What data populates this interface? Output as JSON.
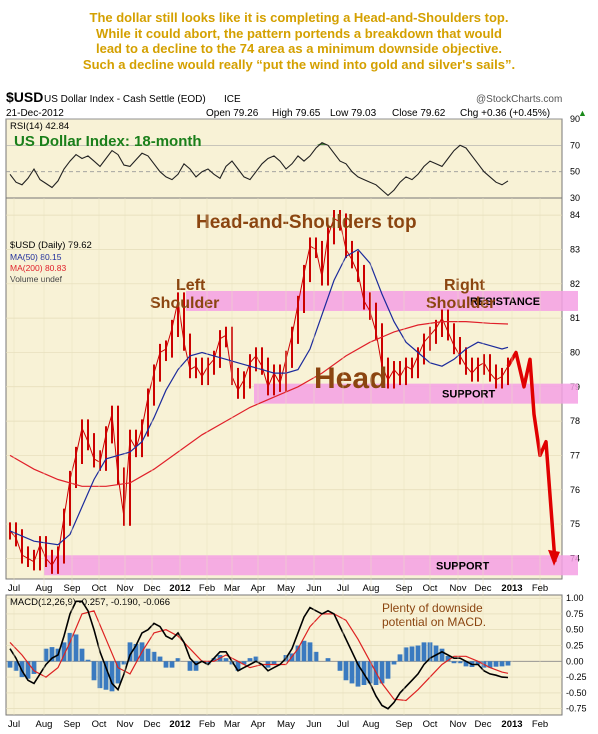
{
  "headline": [
    "The dollar still looks like it is completing a Head-and-Shoulders top.",
    "While it could abort, the pattern portends a breakdown that would",
    "lead to a decline to the 74 area as a minimum downside objective.",
    "Such a decline would really “put the wind into gold and silver's sails”."
  ],
  "header": {
    "symbol": "$USD",
    "name": "US Dollar Index - Cash Settle (EOD)",
    "exchange": "ICE",
    "date": "21-Dec-2012",
    "open": "Open 79.26",
    "high": "High 79.65",
    "low": "Low 79.03",
    "close": "Close 79.62",
    "chg": "Chg +0.36 (+0.45%)",
    "chg_arrow": "▲",
    "watermark": "@StockCharts.com"
  },
  "colors": {
    "background": "#f8f2d6",
    "price": "#cc0000",
    "ma50": "#1c2b9c",
    "ma200": "#e0202a",
    "zone": "#f4a0e4",
    "annotation": "#8b4510",
    "chart_title": "#1a7f1a",
    "arrow": "#e00000",
    "rsi_line": "#222222",
    "macd_line": "#000000",
    "signal_line": "#dd2222",
    "histogram": "#3a7ac0",
    "rsi_overbought": "#4a8a3a",
    "rsi_oversold": "#2a60b0"
  },
  "chart_data": [
    {
      "type": "line",
      "panel": "rsi",
      "label": "RSI(14) 42.84",
      "title": "US Dollar Index: 18-month",
      "ylim": [
        30,
        90
      ],
      "yticks": [
        30,
        50,
        70,
        90
      ],
      "series": [
        {
          "name": "RSI(14)",
          "x": [
            0,
            6,
            12,
            18,
            24,
            30,
            36,
            42,
            48,
            54,
            60,
            66,
            72,
            78,
            84,
            90,
            96,
            102,
            108,
            114,
            120,
            126,
            132,
            138,
            144,
            150,
            156,
            162,
            168,
            174,
            180,
            186,
            192,
            198,
            204,
            210,
            216,
            222,
            228,
            234,
            240,
            246,
            252,
            258,
            264,
            270,
            276,
            282,
            288,
            294,
            300,
            306,
            312,
            318,
            324,
            330,
            336,
            342,
            348,
            354,
            360,
            366,
            372,
            378,
            384,
            390,
            396,
            402,
            408,
            414,
            420,
            426,
            432,
            438,
            444,
            450,
            456,
            462,
            468,
            474,
            480,
            486,
            492,
            498
          ],
          "values": [
            48,
            42,
            40,
            45,
            52,
            44,
            41,
            38,
            43,
            52,
            58,
            63,
            60,
            62,
            58,
            54,
            60,
            66,
            63,
            55,
            54,
            59,
            64,
            62,
            56,
            50,
            46,
            44,
            48,
            56,
            52,
            46,
            50,
            52,
            48,
            45,
            54,
            58,
            52,
            46,
            44,
            50,
            56,
            60,
            62,
            58,
            52,
            56,
            62,
            58,
            62,
            68,
            72,
            70,
            64,
            58,
            56,
            50,
            46,
            44,
            42,
            40,
            36,
            32,
            36,
            42,
            46,
            44,
            48,
            54,
            58,
            56,
            54,
            60,
            66,
            70,
            68,
            62,
            56,
            50,
            46,
            42,
            40,
            43
          ]
        }
      ]
    },
    {
      "type": "line",
      "panel": "price",
      "title": "Head-and-Shoulders top",
      "legend": [
        "$USD (Daily) 79.62",
        "MA(50) 80.15",
        "MA(200) 80.83",
        "Volume undef"
      ],
      "ylim": [
        73.4,
        84.5
      ],
      "yticks": [
        74,
        75,
        76,
        77,
        78,
        79,
        80,
        81,
        82,
        83,
        84
      ],
      "x_tick_labels": [
        "Jul",
        "Aug",
        "Sep",
        "Oct",
        "Nov",
        "Dec",
        "2012",
        "Feb",
        "Mar",
        "Apr",
        "May",
        "Jun",
        "Jul",
        "Aug",
        "Sep",
        "Oct",
        "Nov",
        "Dec",
        "2013",
        "Feb"
      ],
      "series": [
        {
          "name": "$USD (Daily)",
          "x": [
            0,
            6,
            12,
            18,
            24,
            30,
            36,
            42,
            48,
            54,
            60,
            66,
            72,
            78,
            84,
            90,
            96,
            102,
            108,
            114,
            120,
            126,
            132,
            138,
            144,
            150,
            156,
            162,
            168,
            174,
            180,
            186,
            192,
            198,
            204,
            210,
            216,
            222,
            228,
            234,
            240,
            246,
            252,
            258,
            264,
            270,
            276,
            282,
            288,
            294,
            300,
            306,
            312,
            318,
            324,
            330,
            336,
            342,
            348,
            354,
            360,
            366,
            372,
            378,
            384,
            390,
            396,
            402,
            408,
            414,
            420,
            426,
            432,
            438,
            444,
            450,
            456,
            462,
            468,
            474,
            480,
            486,
            492,
            498
          ],
          "values": [
            74.8,
            74.6,
            74.1,
            74.0,
            73.9,
            74.4,
            74.0,
            73.8,
            74.1,
            75.2,
            76.3,
            77.0,
            77.8,
            77.4,
            76.9,
            76.8,
            77.6,
            78.2,
            76.4,
            75.2,
            77.5,
            77.2,
            77.8,
            78.7,
            79.4,
            80.0,
            80.1,
            80.7,
            81.5,
            80.3,
            79.5,
            79.6,
            79.3,
            79.6,
            79.8,
            80.4,
            80.5,
            79.3,
            78.9,
            79.2,
            79.7,
            79.9,
            79.6,
            79.0,
            79.4,
            79.1,
            79.8,
            80.5,
            81.4,
            82.3,
            83.1,
            83.0,
            82.2,
            83.4,
            83.9,
            83.8,
            83.0,
            82.7,
            82.3,
            81.5,
            81.2,
            80.6,
            79.6,
            79.2,
            79.5,
            79.3,
            79.6,
            79.5,
            79.9,
            80.3,
            80.5,
            80.7,
            81.0,
            80.6,
            80.2,
            79.9,
            79.6,
            79.4,
            79.6,
            79.7,
            79.4,
            79.2,
            79.3,
            79.6
          ]
        },
        {
          "name": "MA(50)",
          "x": [
            0,
            24,
            48,
            60,
            72,
            84,
            96,
            108,
            120,
            132,
            144,
            156,
            168,
            180,
            192,
            204,
            216,
            228,
            240,
            252,
            264,
            276,
            288,
            300,
            312,
            324,
            336,
            348,
            360,
            372,
            384,
            396,
            408,
            420,
            432,
            444,
            456,
            468,
            480,
            492,
            498
          ],
          "values": [
            74.8,
            74.5,
            74.4,
            74.7,
            75.5,
            76.3,
            76.9,
            77.0,
            77.1,
            77.4,
            78.1,
            78.9,
            79.5,
            79.9,
            80.0,
            79.9,
            79.8,
            79.7,
            79.6,
            79.5,
            79.4,
            79.4,
            79.5,
            80.1,
            81.1,
            82.1,
            82.8,
            83.0,
            82.6,
            81.7,
            80.9,
            80.3,
            80.0,
            79.7,
            79.6,
            79.8,
            80.1,
            80.3,
            80.2,
            80.1,
            80.15
          ]
        },
        {
          "name": "MA(200)",
          "x": [
            0,
            24,
            48,
            72,
            96,
            120,
            144,
            168,
            192,
            216,
            240,
            264,
            288,
            312,
            336,
            360,
            384,
            408,
            432,
            456,
            480,
            498
          ],
          "values": [
            77.0,
            76.6,
            76.3,
            76.1,
            76.1,
            76.2,
            76.6,
            77.1,
            77.6,
            78.0,
            78.4,
            78.7,
            79.0,
            79.4,
            79.9,
            80.3,
            80.6,
            80.8,
            80.9,
            80.9,
            80.85,
            80.83
          ]
        }
      ],
      "projection": {
        "x": [
          498,
          506,
          514,
          520,
          524,
          530,
          536,
          545
        ],
        "values": [
          79.6,
          80.0,
          79.0,
          79.8,
          78.2,
          77.0,
          77.4,
          73.9
        ]
      },
      "zones": [
        {
          "x0": 176,
          "x1": 578,
          "y": 81.5,
          "label": "RESISTANCE"
        },
        {
          "x0": 244,
          "x1": 578,
          "y": 78.8,
          "label": "SUPPORT"
        },
        {
          "x0": 34,
          "x1": 578,
          "y": 73.8,
          "label": "SUPPORT"
        }
      ],
      "annotations": [
        "Left",
        "Shoulder",
        "Head",
        "Right",
        "Shoulder"
      ]
    },
    {
      "type": "line",
      "panel": "macd",
      "label": "MACD(12,26,9) -0.257, -0.190, -0.066",
      "note": [
        "Plenty of downside",
        "potential on MACD."
      ],
      "ylim": [
        -0.85,
        1.05
      ],
      "yticks": [
        -0.75,
        -0.5,
        -0.25,
        0.0,
        0.25,
        0.5,
        0.75,
        1.0
      ],
      "ytick_labels": [
        "-0.75",
        "-0.50",
        "-0.25",
        "0.00",
        "0.25",
        "0.50",
        "0.75",
        "1.00"
      ],
      "x_tick_labels": [
        "Jul",
        "Aug",
        "Sep",
        "Oct",
        "Nov",
        "Dec",
        "2012",
        "Feb",
        "Mar",
        "Apr",
        "May",
        "Jun",
        "Jul",
        "Aug",
        "Sep",
        "Oct",
        "Nov",
        "Dec",
        "2013",
        "Feb"
      ],
      "series": [
        {
          "name": "MACD",
          "x": [
            0,
            6,
            12,
            18,
            24,
            30,
            36,
            42,
            48,
            54,
            60,
            66,
            72,
            78,
            84,
            90,
            96,
            102,
            108,
            114,
            120,
            126,
            132,
            138,
            144,
            150,
            156,
            162,
            168,
            174,
            180,
            186,
            192,
            198,
            204,
            210,
            216,
            222,
            228,
            234,
            240,
            246,
            252,
            258,
            264,
            270,
            276,
            282,
            288,
            294,
            300,
            306,
            312,
            318,
            324,
            330,
            336,
            342,
            348,
            354,
            360,
            366,
            372,
            378,
            384,
            390,
            396,
            402,
            408,
            414,
            420,
            426,
            432,
            438,
            444,
            450,
            456,
            462,
            468,
            474,
            480,
            486,
            492,
            498
          ],
          "values": [
            0.2,
            0.05,
            -0.15,
            -0.3,
            -0.35,
            -0.2,
            -0.05,
            0.05,
            0.1,
            0.4,
            0.75,
            0.95,
            0.95,
            0.8,
            0.5,
            0.15,
            -0.1,
            -0.35,
            -0.45,
            -0.2,
            0.1,
            0.25,
            0.45,
            0.5,
            0.6,
            0.55,
            0.4,
            0.35,
            0.45,
            0.3,
            0.05,
            -0.05,
            0.0,
            -0.05,
            0.05,
            0.15,
            0.15,
            0.0,
            -0.15,
            -0.1,
            -0.05,
            0.0,
            -0.05,
            -0.15,
            -0.1,
            -0.05,
            0.05,
            0.2,
            0.45,
            0.7,
            0.85,
            0.8,
            0.75,
            0.8,
            0.75,
            0.55,
            0.35,
            0.15,
            -0.05,
            -0.2,
            -0.35,
            -0.55,
            -0.7,
            -0.75,
            -0.65,
            -0.5,
            -0.4,
            -0.3,
            -0.2,
            -0.05,
            0.05,
            0.1,
            0.15,
            0.1,
            0.05,
            0.05,
            0.0,
            -0.05,
            -0.05,
            -0.15,
            -0.2,
            -0.22,
            -0.25,
            -0.257
          ]
        },
        {
          "name": "Signal",
          "x": [
            0,
            12,
            24,
            36,
            48,
            60,
            72,
            84,
            96,
            108,
            120,
            132,
            144,
            156,
            168,
            180,
            192,
            204,
            216,
            228,
            240,
            252,
            264,
            276,
            288,
            300,
            312,
            324,
            336,
            348,
            360,
            372,
            384,
            396,
            408,
            420,
            432,
            444,
            456,
            468,
            480,
            492,
            498
          ],
          "values": [
            0.3,
            0.1,
            -0.15,
            -0.25,
            -0.1,
            0.3,
            0.75,
            0.8,
            0.35,
            -0.1,
            -0.2,
            0.15,
            0.45,
            0.5,
            0.4,
            0.2,
            0.0,
            0.0,
            0.1,
            0.0,
            -0.1,
            -0.05,
            -0.05,
            -0.05,
            0.2,
            0.55,
            0.75,
            0.75,
            0.65,
            0.35,
            0.0,
            -0.35,
            -0.6,
            -0.62,
            -0.45,
            -0.25,
            -0.05,
            0.08,
            0.08,
            0.0,
            -0.1,
            -0.17,
            -0.19
          ]
        }
      ]
    }
  ]
}
